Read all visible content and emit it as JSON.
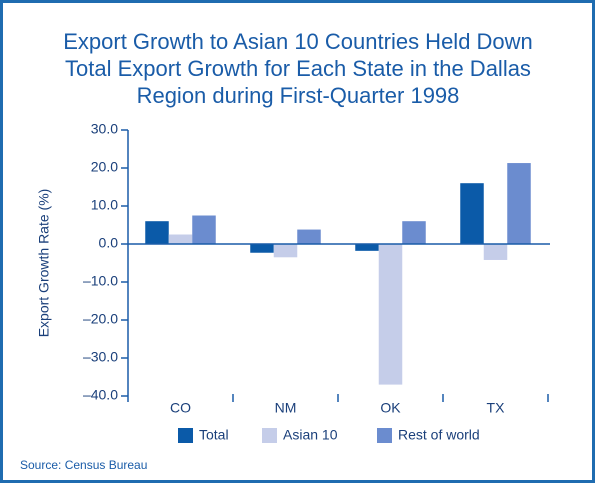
{
  "chart_data": {
    "type": "bar",
    "title": [
      "Export Growth to Asian 10 Countries Held Down",
      "Total Export Growth for Each State in the Dallas",
      "Region during First-Quarter 1998"
    ],
    "y_label": "Export Growth Rate (%)",
    "source": "Source: Census Bureau",
    "categories": [
      "CO",
      "NM",
      "OK",
      "TX"
    ],
    "series": [
      {
        "name": "Total",
        "color": "#0b5aa8",
        "values": [
          6.0,
          -2.3,
          -1.8,
          16.0
        ]
      },
      {
        "name": "Asian 10",
        "color": "#c5cde9",
        "values": [
          2.5,
          -3.5,
          -37.0,
          -4.2
        ]
      },
      {
        "name": "Rest of world",
        "color": "#6b8ccf",
        "values": [
          7.5,
          3.8,
          6.0,
          21.3
        ]
      }
    ],
    "ylim": [
      -40,
      30
    ],
    "yticks": [
      {
        "value": 30,
        "label": "30.0"
      },
      {
        "value": 20,
        "label": "20.0"
      },
      {
        "value": 10,
        "label": "10.0"
      },
      {
        "value": 0,
        "label": "0.0"
      },
      {
        "value": -10,
        "label": "–10.0"
      },
      {
        "value": -20,
        "label": "–20.0"
      },
      {
        "value": -30,
        "label": "–30.0"
      },
      {
        "value": -40,
        "label": "–40.0"
      }
    ],
    "grid": false,
    "legend": "bottom"
  }
}
